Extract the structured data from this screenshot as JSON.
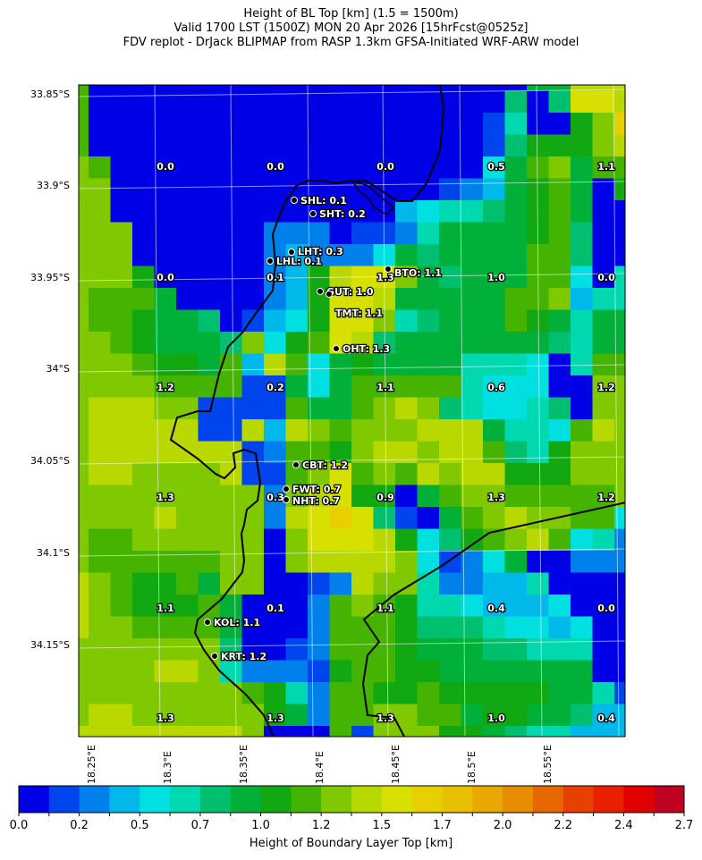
{
  "title": {
    "line1": "Height of BL Top [km] (1.5 = 1500m)",
    "line2": "Valid 1700 LST (1500Z) MON 20 Apr 2026 [15hrFcst@0525z]",
    "line3": "FDV replot - DrJack BLIPMAP from RASP 1.3km GFSA-Initiated WRF-ARW model"
  },
  "axes": {
    "lat_labels": [
      "33.85°S",
      "33.9°S",
      "33.95°S",
      "34°S",
      "34.05°S",
      "34.1°S",
      "34.15°S"
    ],
    "lon_labels": [
      "18.25°E",
      "18.3°E",
      "18.35°E",
      "18.4°E",
      "18.45°E",
      "18.5°E",
      "18.55°E"
    ]
  },
  "chart_data": {
    "type": "heatmap",
    "title": "Height of BL Top [km] (1.5 = 1500m)",
    "colorbar": {
      "label": "Height of Boundary Layer Top [km]",
      "range": [
        0.0,
        2.7
      ],
      "tick_labels": [
        "0.0",
        "0.2",
        "0.5",
        "0.7",
        "1.0",
        "1.2",
        "1.5",
        "1.7",
        "2.0",
        "2.2",
        "2.4",
        "2.7"
      ],
      "colors": [
        "#0000e6",
        "#0044ee",
        "#0080ea",
        "#00b8ea",
        "#00e0e0",
        "#00d8b0",
        "#00c070",
        "#00b038",
        "#12a812",
        "#44b400",
        "#80c800",
        "#b8d800",
        "#d8e000",
        "#e8d000",
        "#e8c000",
        "#e8a800",
        "#e88c00",
        "#e86800",
        "#e84000",
        "#e82000",
        "#e00000",
        "#c00020"
      ]
    },
    "grid_bins_note": "bin index per cell (0-9,a-l), rows north to south",
    "grid_bins": [
      "90000 00000 00000 00000 077bb b",
      "90000 00000 00000 00000 606cc b",
      "90000 00000 00000 00001 5008a d",
      "90000 00000 00000 00001 6888a b",
      "a9000 00000 00000 00004 79a79 9",
      "aa000 00000 00000 00123 78970 8",
      "aa000 00000 00000 34556 78970 0",
      "aaa00 00002 22011 25777 78960 0",
      "aaa00 00002 32224 76777 79960 0",
      "aaa80 00002 38bcc a7677 79940 5",
      "a9997 00002 38ccb 77777 99a35 5",
      "a9987 76013 48cca 56777 98757 7",
      "aa987 776a4 89cb6 77777 77657 7",
      "aaa98 8793b 94787 77755 54059 9",
      "aaaa9 99911 74799 99954 4400a a",
      "abbba a1111 9779a ba654 4560a a",
      "abbbb b11b3 ba9aa abbb7 5549b a",
      "abbbb bbb12 998ab babb9 658aa a",
      "abbaa aab11 9ac9a 9babb 888aa a",
      "aaaaa aaaa2 abc88 079aa 99999 a",
      "aaaab aaaa2 bcdc6 1079a baa99 4",
      "a99aa aaaa0 acccb 84689 ab945 2",
      "a9999 99aa0 abbbb a4124 70022 2",
      "ba988 97aa0 012ba a5223 35000 0",
      "ba988 89700 029a9 85543 33400 0",
      "baa99 99700 02999 86665 44340 0",
      "aaaaa aa600 12999 87776 65550 0",
      "aaaab ba522 21899 88777 77770 0",
      "aaaaa aaa98 52998 89888 88775 1",
      "abbaa aaaa8 7299a a9978 87763 3",
      "bbbbb bbba0 0091a aa887 65533 3"
    ],
    "sample_values": [
      [
        "0.0",
        "0.0",
        "0.0",
        "0.5",
        "1.1"
      ],
      [
        "0.0",
        "0.1",
        "1.3",
        "1.0",
        "0.0"
      ],
      [
        "1.2",
        "0.2",
        "1.1",
        "0.6",
        "1.2"
      ],
      [
        "1.3",
        "0.3",
        "0.9",
        "1.3",
        "1.2"
      ],
      [
        "1.1",
        "0.1",
        "1.1",
        "0.4",
        "0.0"
      ],
      [
        "1.3",
        "1.3",
        "1.3",
        "1.0",
        "0.4"
      ]
    ],
    "stations": [
      {
        "label": "SHL: 0.1"
      },
      {
        "label": "SHT: 0.2"
      },
      {
        "label": "LHT: 0.3"
      },
      {
        "label": "LHL: 0.1"
      },
      {
        "label": "GUT: 1.0"
      },
      {
        "label": "TMT: 1.1"
      },
      {
        "label": "BTO: 1.1"
      },
      {
        "label": "OHT: 1.3"
      },
      {
        "label": "CBT: 1.2"
      },
      {
        "label": "FWT: 0.7"
      },
      {
        "label": "NHT: 0.7"
      },
      {
        "label": "KOL: 1.1"
      },
      {
        "label": "KRT: 1.2"
      }
    ]
  }
}
